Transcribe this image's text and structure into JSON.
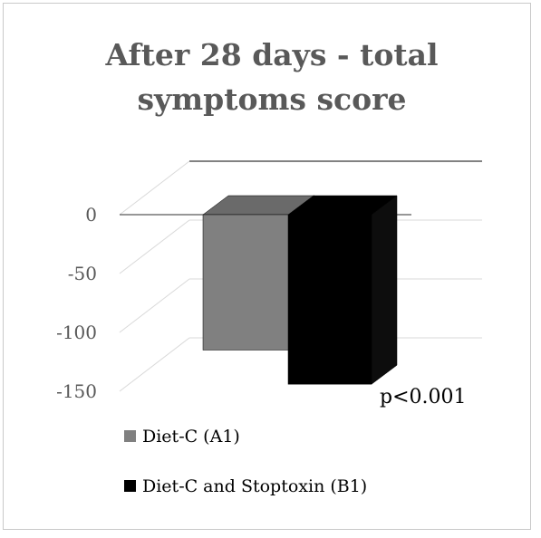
{
  "chart_data": {
    "type": "bar",
    "title": [
      "After 28 days - total",
      "symptoms score"
    ],
    "xlabel": "",
    "ylabel": "",
    "ylim": [
      -150,
      0
    ],
    "yticks": [
      "0",
      "-50",
      "-100",
      "-150"
    ],
    "categories": [
      ""
    ],
    "series": [
      {
        "name": "Diet-C (A1)",
        "values": [
          -115
        ],
        "color": "#808080"
      },
      {
        "name": "Diet-C and Stoptoxin (B1)",
        "values": [
          -144
        ],
        "color": "#000000"
      }
    ],
    "annotation": "p<0.001",
    "legend_position": "bottom",
    "style": "3d-column"
  }
}
